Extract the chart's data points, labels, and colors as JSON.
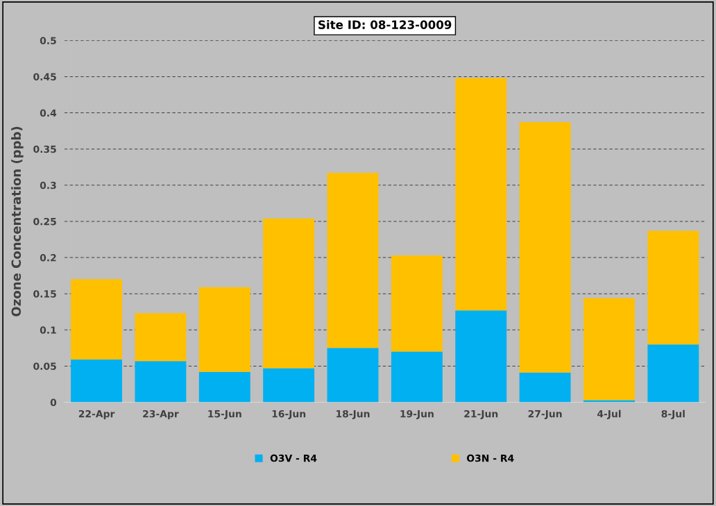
{
  "chart_data": {
    "type": "bar",
    "title": "Site ID: 08-123-0009",
    "ylabel": "Ozone Concentration (ppb)",
    "categories": [
      "22-Apr",
      "23-Apr",
      "15-Jun",
      "16-Jun",
      "18-Jun",
      "19-Jun",
      "21-Jun",
      "27-Jun",
      "4-Jul",
      "8-Jul"
    ],
    "stacked": true,
    "series": [
      {
        "name": "O3V - R4",
        "color": "#00b0f0",
        "values": [
          0.059,
          0.057,
          0.042,
          0.047,
          0.075,
          0.07,
          0.127,
          0.041,
          0.003,
          0.08
        ]
      },
      {
        "name": "O3N - R4",
        "color": "#ffc000",
        "values": [
          0.111,
          0.066,
          0.117,
          0.207,
          0.242,
          0.133,
          0.321,
          0.346,
          0.141,
          0.157
        ]
      }
    ],
    "ylim": [
      0,
      0.5
    ],
    "yticks": [
      0,
      0.05,
      0.1,
      0.15,
      0.2,
      0.25,
      0.3,
      0.35,
      0.4,
      0.45,
      0.5
    ],
    "grid": "y",
    "legend": "bottom"
  }
}
